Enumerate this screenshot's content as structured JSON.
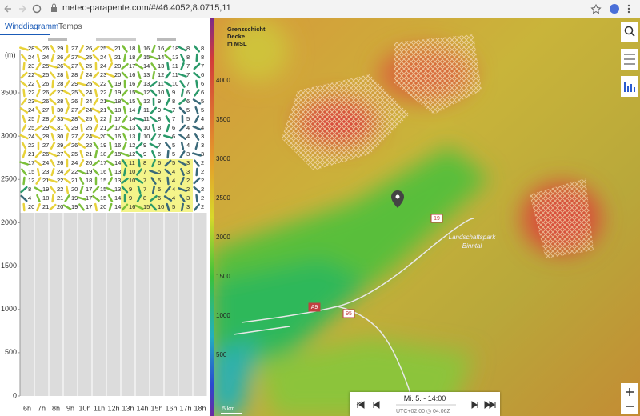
{
  "browser": {
    "url": "meteo-parapente.com/#/46.4052,8.0715,11"
  },
  "tabs": [
    "Winddiagramm",
    "Temps"
  ],
  "diagram": {
    "y_unit": "(m)",
    "yticks": [
      0,
      500,
      1000,
      1500,
      2000,
      2500,
      3000,
      3500
    ],
    "hours": [
      "6h",
      "7h",
      "8h",
      "9h",
      "10h",
      "11h",
      "12h",
      "13h",
      "14h",
      "15h",
      "16h",
      "17h",
      "18h"
    ],
    "rows": [
      [
        28,
        26,
        29,
        27,
        26,
        25,
        21,
        18,
        16,
        16,
        18,
        8,
        8
      ],
      [
        24,
        24,
        26,
        27,
        25,
        24,
        21,
        18,
        15,
        14,
        13,
        8,
        8
      ],
      [
        23,
        25,
        26,
        27,
        25,
        24,
        20,
        17,
        14,
        13,
        11,
        7,
        7
      ],
      [
        22,
        25,
        28,
        28,
        24,
        23,
        20,
        16,
        13,
        12,
        11,
        7,
        6
      ],
      [
        22,
        26,
        28,
        29,
        25,
        22,
        19,
        16,
        13,
        11,
        10,
        7,
        6
      ],
      [
        22,
        26,
        27,
        25,
        24,
        22,
        19,
        15,
        12,
        10,
        9,
        6,
        6
      ],
      [
        23,
        26,
        28,
        26,
        24,
        21,
        18,
        15,
        12,
        9,
        8,
        6,
        5
      ],
      [
        24,
        27,
        30,
        27,
        24,
        21,
        18,
        14,
        11,
        9,
        7,
        5,
        5
      ],
      [
        25,
        28,
        33,
        28,
        25,
        22,
        17,
        14,
        11,
        8,
        7,
        5,
        4
      ],
      [
        25,
        29,
        31,
        29,
        25,
        21,
        17,
        13,
        10,
        8,
        6,
        4,
        4
      ],
      [
        24,
        28,
        30,
        27,
        24,
        20,
        16,
        13,
        10,
        7,
        6,
        4,
        3
      ],
      [
        22,
        27,
        29,
        26,
        22,
        19,
        16,
        12,
        9,
        7,
        5,
        4,
        3
      ],
      [
        21,
        26,
        27,
        25,
        21,
        18,
        15,
        12,
        9,
        6,
        5,
        3,
        3
      ],
      [
        17,
        24,
        26,
        24,
        20,
        17,
        14,
        11,
        8,
        6,
        5,
        3,
        2
      ],
      [
        15,
        23,
        24,
        22,
        19,
        16,
        13,
        10,
        7,
        5,
        4,
        3,
        2
      ],
      [
        12,
        21,
        22,
        21,
        18,
        15,
        13,
        10,
        7,
        5,
        4,
        2,
        2
      ],
      [
        8,
        19,
        22,
        20,
        17,
        15,
        13,
        9,
        7,
        5,
        4,
        2,
        2
      ],
      [
        4,
        18,
        21,
        19,
        17,
        15,
        14,
        9,
        8,
        6,
        4,
        3,
        2
      ],
      [
        20,
        21,
        20,
        19,
        17,
        20,
        14,
        16,
        15,
        10,
        5,
        3,
        2
      ]
    ]
  },
  "map": {
    "legend_title": [
      "Grenzschicht",
      "Decke",
      "m MSL"
    ],
    "scale": [
      4000,
      3500,
      3000,
      2500,
      2000,
      1500,
      1000,
      500
    ],
    "roads": [
      "19",
      "A9",
      "95"
    ],
    "park": [
      "Landschaftspark",
      "Binntal"
    ],
    "scale_bar": "5 km"
  },
  "time": {
    "label": "Mi. 5. - 14:00",
    "zone": "UTC+02:00",
    "run": "04:06Z"
  }
}
